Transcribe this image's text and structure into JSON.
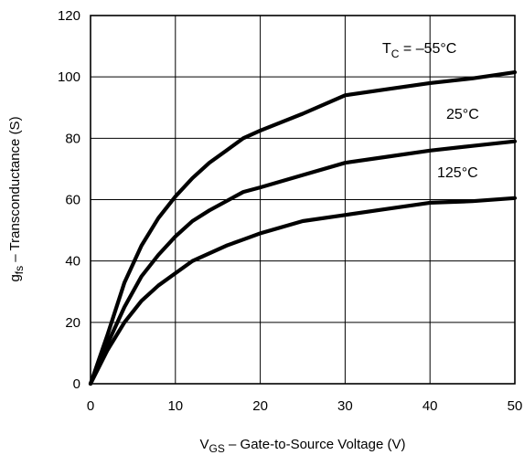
{
  "chart_data": {
    "type": "line",
    "x_range": [
      0,
      50
    ],
    "y_range": [
      0,
      120
    ],
    "x_ticks": [
      0,
      10,
      20,
      30,
      40,
      50
    ],
    "y_ticks": [
      0,
      20,
      40,
      60,
      80,
      100,
      120
    ],
    "grid": true,
    "xlabel": {
      "main": "V",
      "sub": "GS",
      "rest": " – Gate-to-Source Voltage (V)"
    },
    "ylabel": {
      "main": "g",
      "sub": "fs",
      "rest": " – Transconductance (S)"
    },
    "series": [
      {
        "name": "T_C = –55°C",
        "x": [
          0,
          2,
          4,
          6,
          8,
          10,
          12,
          14,
          16,
          18,
          20,
          25,
          30,
          35,
          40,
          45,
          50
        ],
        "y": [
          0,
          16,
          33,
          45,
          54,
          61,
          67,
          72,
          76,
          80,
          82.5,
          88,
          94,
          96,
          98,
          99.5,
          101.5
        ]
      },
      {
        "name": "25°C",
        "x": [
          0,
          2,
          4,
          6,
          8,
          10,
          12,
          14,
          16,
          18,
          20,
          25,
          30,
          35,
          40,
          45,
          50
        ],
        "y": [
          0,
          13,
          25,
          35,
          42,
          48,
          53,
          56.5,
          59.5,
          62.5,
          64,
          68,
          72,
          74,
          76,
          77.5,
          79
        ]
      },
      {
        "name": "125°C",
        "x": [
          0,
          2,
          4,
          6,
          8,
          10,
          12,
          14,
          16,
          18,
          20,
          25,
          30,
          35,
          40,
          45,
          50
        ],
        "y": [
          0,
          11,
          20,
          27,
          32,
          36,
          40,
          42.5,
          45,
          47,
          49,
          53,
          55,
          57,
          59,
          59.5,
          60.5
        ]
      }
    ],
    "annotations": [
      {
        "main": "T",
        "sub": "C",
        "rest": " = –55°C"
      },
      {
        "main": "25°C",
        "sub": "",
        "rest": ""
      },
      {
        "main": "125°C",
        "sub": "",
        "rest": ""
      }
    ]
  }
}
